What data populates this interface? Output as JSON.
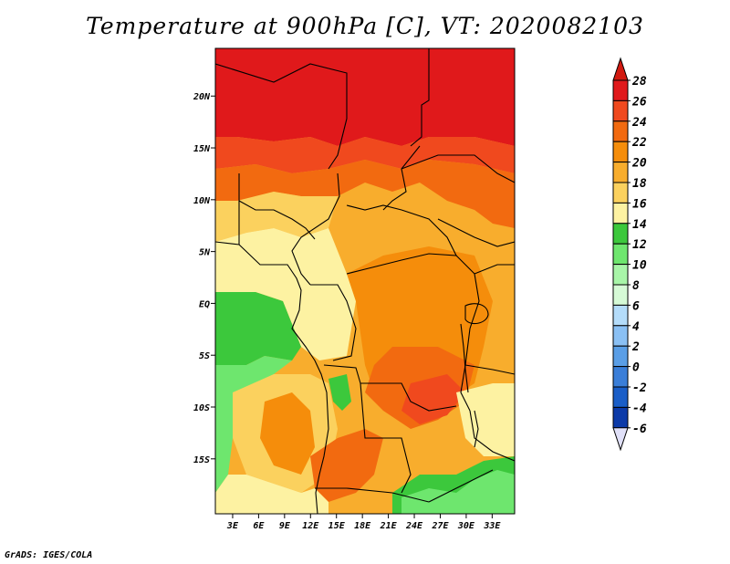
{
  "title": "Temperature at 900hPa [C], VT: 2020082103",
  "credit": "GrADS: IGES/COLA",
  "map": {
    "lat_labels": [
      "20N",
      "15N",
      "10N",
      "5N",
      "EQ",
      "5S",
      "10S",
      "15S"
    ],
    "lat_values": [
      20,
      15,
      10,
      5,
      0,
      -5,
      -10,
      -15
    ],
    "lon_labels": [
      "3E",
      "6E",
      "9E",
      "12E",
      "15E",
      "18E",
      "21E",
      "24E",
      "27E",
      "30E",
      "33E"
    ],
    "lon_values": [
      3,
      6,
      9,
      12,
      15,
      18,
      21,
      24,
      27,
      30,
      33
    ]
  },
  "colorbar": {
    "labels": [
      "28",
      "26",
      "24",
      "22",
      "20",
      "18",
      "16",
      "14",
      "12",
      "10",
      "8",
      "6",
      "4",
      "2",
      "0",
      "-2",
      "-4",
      "-6"
    ],
    "colors": [
      "#e0191b",
      "#f0491e",
      "#f26a10",
      "#f58d0b",
      "#f8ad2d",
      "#fbd15e",
      "#fdf2a2",
      "#3cc83c",
      "#6ee66e",
      "#a8f5a8",
      "#d6fad6",
      "#b4dcfa",
      "#8ac0f4",
      "#5a9ee6",
      "#3a7ed8",
      "#1a5ec8",
      "#0c3aa8",
      "#0a0a78"
    ],
    "top_arrow_color": "#d21a10",
    "bottom_arrow_color": "#e0e0f8"
  }
}
